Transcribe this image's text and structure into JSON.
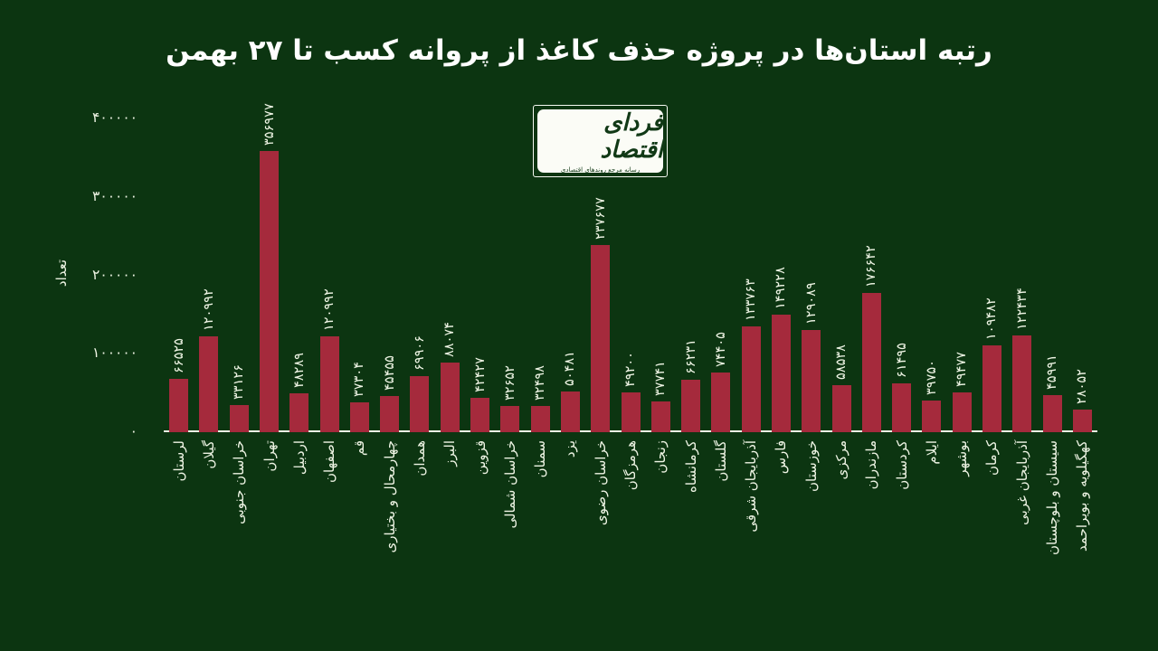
{
  "title": "رتبه استان‌ها در پروژه حذف کاغذ از پروانه کسب تا ۲۷ بهمن",
  "logo": {
    "name": "فردای اقتصاد",
    "tagline": "رسانه مرجع روندهای اقتصادی"
  },
  "colors": {
    "background": "#0c3511",
    "bar": "#a52a3c",
    "label_text": "#eef4e4",
    "title_text": "#ffffff",
    "axis_line": "#eef4e4",
    "logo_background": "#fbfcf6",
    "logo_text": "#113916"
  },
  "chart_data": {
    "type": "bar",
    "title": "رتبه استان‌ها در پروژه حذف کاغذ از پروانه کسب تا ۲۷ بهمن",
    "xlabel": "",
    "ylabel": "تعداد",
    "ylim": [
      0,
      400000
    ],
    "yticks": [
      0,
      100000,
      200000,
      300000,
      400000
    ],
    "grid": false,
    "legend": "none",
    "number_locale": "fa-IR",
    "value_labels": "rotated above bars",
    "categories": [
      "لرستان",
      "گیلان",
      "خراسان جنوبی",
      "تهران",
      "اردبیل",
      "اصفهان",
      "قم",
      "چهارمحال و بختیاری",
      "همدان",
      "البرز",
      "قزوین",
      "خراسان شمالی",
      "سمنان",
      "یزد",
      "خراسان رضوی",
      "هرمزگان",
      "زنجان",
      "کرمانشاه",
      "گلستان",
      "آذربایجان شرقی",
      "فارس",
      "خوزستان",
      "مرکزی",
      "مازندران",
      "کردستان",
      "ایلام",
      "بوشهر",
      "کرمان",
      "آذربایجان غربی",
      "سیستان و بلوچستان",
      "کهگیلویه و بویراحمد"
    ],
    "values": [
      66525,
      120992,
      33126,
      356977,
      48289,
      120992,
      37304,
      45455,
      69906,
      88074,
      42427,
      32652,
      32498,
      50481,
      237677,
      49200,
      37741,
      66231,
      74405,
      133763,
      149228,
      129089,
      58538,
      176642,
      61495,
      39750,
      49477,
      109482,
      122434,
      45991,
      28052
    ]
  }
}
